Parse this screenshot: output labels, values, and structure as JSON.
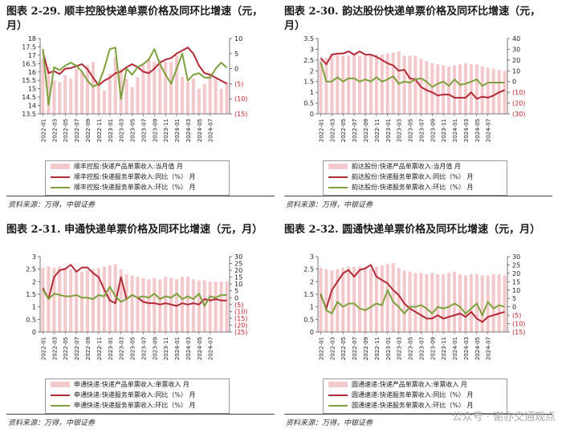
{
  "colors": {
    "bar": "#f4c9cc",
    "yoy": "#b22a36",
    "mom": "#7da13c",
    "axis": "#555555"
  },
  "source": "资料来源：万得，中银证券",
  "watermark": "公众号 · 谢亦交通观点",
  "chart_data": [
    {
      "type": "bar",
      "title": "图表 2-29. 顺丰控股快递单票价格及同环比增速（元，月）",
      "legend": [
        "顺丰控股:快递产品单票收入:当月值 月",
        "顺丰控股:快递服务单票收入:同比（%） 月",
        "顺丰控股:快递服务单票收入:环比（%） 月"
      ],
      "x_ticks": [
        "2022-01",
        "2022-03",
        "2022-05",
        "2022-07",
        "2022-09",
        "2022-11",
        "2023-01",
        "2023-03",
        "2023-05",
        "2023-07",
        "2023-09",
        "2023-11",
        "2024-01",
        "2024-03",
        "2024-05",
        "2024-07"
      ],
      "left_axis": {
        "ylim": [
          13.5,
          18
        ],
        "ticks": [
          "13.5",
          "14",
          "14.5",
          "15",
          "15.5",
          "16",
          "16.5",
          "17",
          "17.5",
          "18"
        ]
      },
      "right_axis": {
        "ylim": [
          -15,
          10
        ],
        "ticks": [
          "10",
          "5",
          "0",
          "(5)",
          "(10)",
          "(15)"
        ]
      },
      "series": [
        {
          "name": "当月值",
          "kind": "bar",
          "axis": "left",
          "values": [
            16.8,
            16.3,
            15.5,
            15.4,
            15.8,
            15.6,
            16.2,
            16.0,
            16.4,
            16.6,
            15.2,
            14.9,
            15.9,
            16.9,
            16.2,
            15.6,
            15.1,
            15.7,
            16.4,
            16.8,
            16.6,
            16.7,
            16.6,
            16.6,
            17.0,
            15.7,
            15.4,
            15.6,
            15.0,
            15.3,
            15.9,
            15.6,
            15.0,
            15.4
          ]
        },
        {
          "name": "同比",
          "kind": "line",
          "axis": "right",
          "values": [
            5.5,
            -1.5,
            -0.8,
            -1.8,
            0,
            0.2,
            0.8,
            1.5,
            -0.2,
            -3,
            -5.5,
            -4,
            -3,
            -1.5,
            -1,
            0.5,
            1.5,
            0.5,
            -1,
            -1.5,
            0,
            2,
            3,
            3.5,
            5,
            6,
            7,
            5,
            1,
            -1.5,
            -2,
            -3,
            -4,
            -5
          ]
        },
        {
          "name": "环比",
          "kind": "line",
          "axis": "right",
          "values": [
            6.5,
            -12,
            0.5,
            -0.5,
            1,
            2,
            1,
            -1,
            -4,
            -6,
            -5,
            0,
            6.5,
            7,
            -10,
            0,
            -2,
            0.5,
            1.5,
            3,
            6.5,
            1.5,
            -2,
            -5,
            0,
            5,
            -4,
            -2,
            -1.5,
            -3,
            -3,
            0,
            2,
            0.3
          ]
        }
      ]
    },
    {
      "type": "bar",
      "title": "图表 2-30. 韵达股份快递单票价格及同环比增速（元，月）",
      "legend": [
        "韵达股份:快递产品单票收入:当月值 月",
        "韵达股份:快递服务单票收入:同比（%） 月",
        "韵达股份:快递服务单票收入:环比（%） 月"
      ],
      "x_ticks": [
        "2022-01",
        "2022-03",
        "2022-05",
        "2022-07",
        "2022-09",
        "2022-11",
        "2023-01",
        "2023-03",
        "2023-05",
        "2023-07",
        "2023-09",
        "2023-11",
        "2024-01",
        "2024-03",
        "2024-05",
        "2024-07"
      ],
      "left_axis": {
        "ylim": [
          0,
          3.5
        ],
        "ticks": [
          "0",
          "0.5",
          "1",
          "1.5",
          "2",
          "2.5",
          "3",
          "3.5"
        ]
      },
      "right_axis": {
        "ylim": [
          -30,
          40
        ],
        "ticks": [
          "40",
          "30",
          "20",
          "10",
          "0",
          "(10)",
          "(20)",
          "(30)"
        ]
      },
      "series": [
        {
          "name": "当月值",
          "kind": "bar",
          "axis": "left",
          "values": [
            2.5,
            2.6,
            2.8,
            2.75,
            2.7,
            2.7,
            2.75,
            2.7,
            2.7,
            2.7,
            2.75,
            2.75,
            2.8,
            2.85,
            2.9,
            2.7,
            2.7,
            2.7,
            2.55,
            2.45,
            2.35,
            2.3,
            2.25,
            2.2,
            2.25,
            2.3,
            2.35,
            2.3,
            2.3,
            2.2,
            2.15,
            2.1,
            2.05,
            2.0
          ]
        },
        {
          "name": "同比",
          "kind": "line",
          "axis": "right",
          "values": [
            22,
            16,
            25,
            26,
            26,
            28,
            25,
            28,
            25,
            25,
            23,
            20,
            17,
            15,
            10,
            11,
            3,
            2,
            -5,
            -8,
            -10,
            -13,
            -12,
            -12,
            -15,
            -15,
            -15,
            -10,
            -16,
            -14,
            -15,
            -13,
            -10,
            -8
          ]
        },
        {
          "name": "环比",
          "kind": "line",
          "axis": "right",
          "values": [
            18,
            0,
            0,
            4,
            0,
            3,
            3,
            0,
            2,
            0,
            4,
            0,
            2,
            5,
            -2,
            0,
            -1,
            2,
            3,
            0,
            -5,
            -2,
            0,
            -4,
            2,
            -3,
            -2,
            0,
            2,
            -4,
            -1,
            -1,
            -1,
            -1
          ]
        }
      ]
    },
    {
      "type": "bar",
      "title": "图表 2-31. 申通快递单票价格及同环比增速（元，月）",
      "legend": [
        "申通快递:快递产品单票收入:单票收入 月",
        "申通快递:快递服务单票收入:同比（%） 月",
        "申通快递:快递服务单票收入:环比（%） 月"
      ],
      "x_ticks": [
        "2022-01",
        "2022-03",
        "2022-05",
        "2022-07",
        "2022-09",
        "2022-11",
        "2023-01",
        "2023-03",
        "2023-05",
        "2023-07",
        "2023-09",
        "2023-11",
        "2024-01",
        "2024-03",
        "2024-05",
        "2024-07"
      ],
      "left_axis": {
        "ylim": [
          0,
          3
        ],
        "ticks": [
          "0",
          "0.5",
          "1",
          "1.5",
          "2",
          "2.5",
          "3"
        ]
      },
      "right_axis": {
        "ylim": [
          -25,
          30
        ],
        "ticks": [
          "30",
          "25",
          "20",
          "15",
          "10",
          "5",
          "0",
          "(5)",
          "(10)",
          "(15)",
          "(20)",
          "(25)"
        ]
      },
      "series": [
        {
          "name": "当月值",
          "kind": "bar",
          "axis": "left",
          "values": [
            2.55,
            2.6,
            2.55,
            2.6,
            2.55,
            2.5,
            2.45,
            2.4,
            2.45,
            2.5,
            2.55,
            2.6,
            2.65,
            2.7,
            2.5,
            2.3,
            2.25,
            2.2,
            2.15,
            2.1,
            2.15,
            2.1,
            2.2,
            2.15,
            2.1,
            2.2,
            2.2,
            2.1,
            2.05,
            2.05,
            2.0,
            2.0,
            2.0,
            2.0
          ]
        },
        {
          "name": "同比",
          "kind": "line",
          "axis": "right",
          "values": [
            7,
            -1,
            15,
            20,
            21,
            24,
            19,
            22,
            22,
            18,
            15,
            6,
            -2,
            -4,
            15,
            -1,
            2,
            0,
            -3,
            -4,
            -4,
            -5,
            -4,
            -5,
            -6,
            -4,
            -5,
            -4,
            -5,
            -1,
            -2,
            -1,
            -2,
            -2
          ]
        },
        {
          "name": "环比",
          "kind": "line",
          "axis": "right",
          "values": [
            6,
            -1,
            3,
            2,
            1,
            1,
            2,
            0,
            0,
            -1,
            2,
            1,
            8,
            1,
            -3,
            -1,
            2,
            0,
            1,
            0,
            3,
            -1,
            1,
            0,
            3,
            -1,
            1,
            -1,
            3,
            -6,
            1,
            0,
            2,
            2
          ]
        }
      ]
    },
    {
      "type": "bar",
      "title": "图表 2-32. 圆通快递单票价格及同环比增速（元，月）",
      "legend": [
        "圆通速递:快递产品单票收入:单票收入 月",
        "圆通速递:快递服务单票收入:同比（%） 月",
        "圆通速递:快递服务单票收入:环比（%） 月"
      ],
      "x_ticks": [
        "2022-01",
        "2022-03",
        "2022-05",
        "2022-07",
        "2022-09",
        "2022-11",
        "2023-01",
        "2023-03",
        "2023-05",
        "2023-07",
        "2023-09",
        "2023-11",
        "2024-01",
        "2024-03",
        "2024-05",
        "2024-07"
      ],
      "left_axis": {
        "ylim": [
          0,
          3
        ],
        "ticks": [
          "0",
          "0.5",
          "1",
          "1.5",
          "2",
          "2.5",
          "3"
        ]
      },
      "right_axis": {
        "ylim": [
          -15,
          30
        ],
        "ticks": [
          "30",
          "25",
          "20",
          "15",
          "10",
          "5",
          "0",
          "(5)",
          "(10)",
          "(15)"
        ]
      },
      "series": [
        {
          "name": "当月值",
          "kind": "bar",
          "axis": "left",
          "values": [
            2.55,
            2.5,
            2.45,
            2.5,
            2.55,
            2.6,
            2.6,
            2.6,
            2.55,
            2.5,
            2.6,
            2.65,
            2.7,
            2.75,
            2.55,
            2.45,
            2.4,
            2.35,
            2.35,
            2.3,
            2.35,
            2.3,
            2.3,
            2.35,
            2.4,
            2.3,
            2.25,
            2.3,
            2.3,
            2.25,
            2.25,
            2.3,
            2.3,
            2.25
          ]
        },
        {
          "name": "同比",
          "kind": "line",
          "axis": "right",
          "values": [
            7,
            -1,
            10,
            15,
            20,
            22,
            18,
            22,
            23,
            25,
            18,
            16,
            14,
            10,
            7,
            2,
            -1,
            -3,
            -5,
            -7,
            -7,
            -5,
            -7,
            -6,
            -5,
            -4,
            -6,
            -3,
            -7,
            -9,
            -6,
            -5,
            -4,
            -3
          ]
        },
        {
          "name": "环比",
          "kind": "line",
          "axis": "right",
          "values": [
            8,
            -2,
            -4,
            3,
            0,
            2,
            2,
            -1,
            -2,
            0,
            2,
            1,
            10,
            3,
            0,
            -4,
            0,
            0,
            1,
            -1,
            -4,
            0,
            -1,
            0,
            2,
            0,
            -4,
            -1,
            2,
            -5,
            3,
            -1,
            1,
            0
          ]
        }
      ]
    }
  ]
}
